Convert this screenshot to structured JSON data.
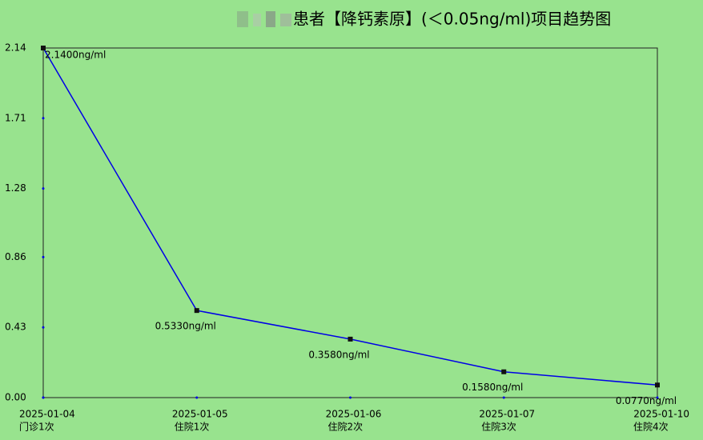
{
  "chart_data": {
    "type": "line",
    "title": "患者【降钙素原】(＜0.05ng/ml)项目趋势图",
    "categories": [
      "2025-01-04",
      "2025-01-05",
      "2025-01-06",
      "2025-01-07",
      "2025-01-10"
    ],
    "category_visits": [
      "门诊1次",
      "住院1次",
      "住院2次",
      "住院3次",
      "住院4次"
    ],
    "values": [
      2.14,
      0.533,
      0.358,
      0.158,
      0.077
    ],
    "value_labels": [
      "2.1400ng/ml",
      "0.5330ng/ml",
      "0.3580ng/ml",
      "0.1580ng/ml",
      "0.0770ng/ml"
    ],
    "color": "#0000e6",
    "ylim": [
      0,
      2.14
    ],
    "yticks": [
      {
        "value": 0,
        "label": "0.00"
      },
      0.43,
      0.86,
      1.28,
      1.71,
      2.14
    ]
  }
}
